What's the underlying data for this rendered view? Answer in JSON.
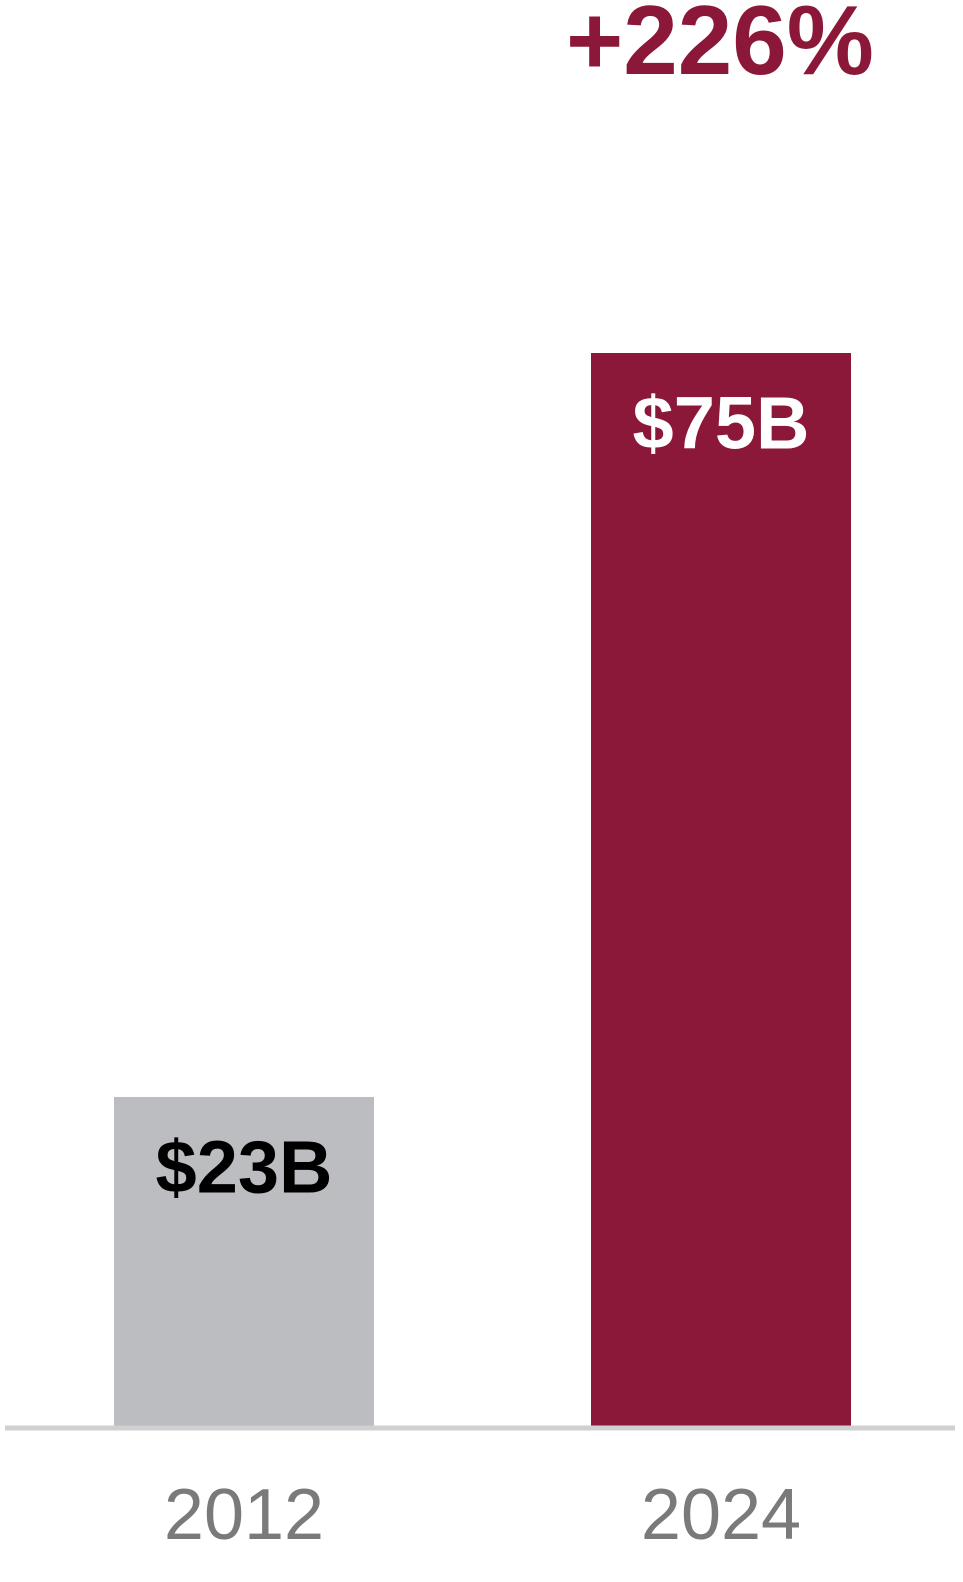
{
  "chart_data": {
    "type": "bar",
    "annotation": "+226%",
    "categories": [
      "2012",
      "2024"
    ],
    "values": [
      23,
      75
    ],
    "value_labels": [
      "$23B",
      "$75B"
    ],
    "colors": [
      "#bcbdc0",
      "#8b1838"
    ]
  }
}
